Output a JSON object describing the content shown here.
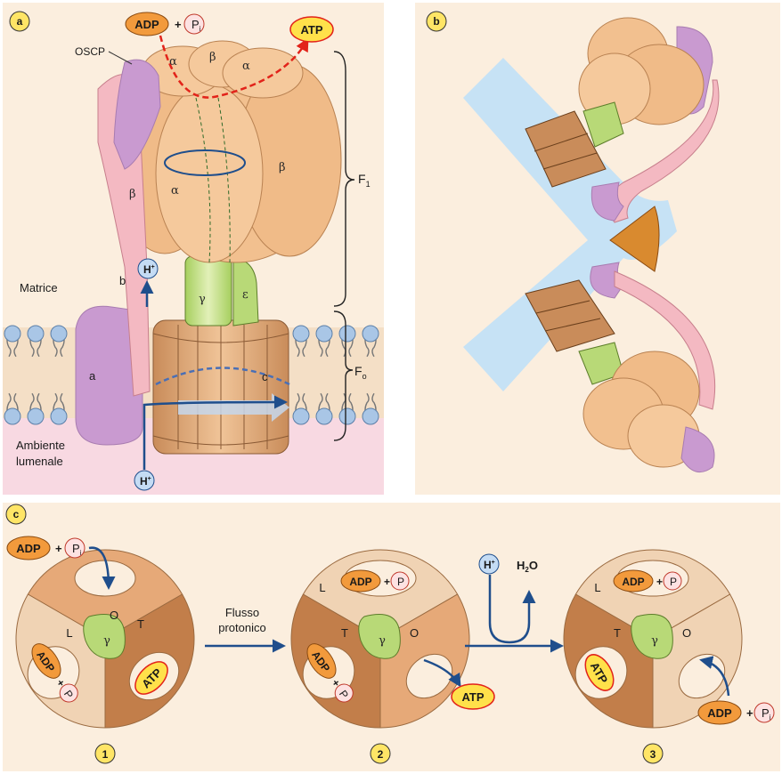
{
  "panels": {
    "a": "a",
    "b": "b",
    "c": "c"
  },
  "panel_a": {
    "adp": "ADP",
    "plus": "+",
    "pi": "P",
    "pi_sub": "i",
    "atp": "ATP",
    "oscp": "OSCP",
    "alpha": "α",
    "beta": "β",
    "gamma": "γ",
    "epsilon": "ε",
    "b": "b",
    "a": "a",
    "c": "c",
    "f1": "F",
    "f1_sub": "1",
    "fo": "F",
    "fo_sub": "o",
    "matrix": "Matrice",
    "lumen_line1": "Ambiente",
    "lumen_line2": "lumenale",
    "h": "H",
    "h_sup": "+"
  },
  "panel_c": {
    "flow_line1": "Flusso",
    "flow_line2": "protonico",
    "L": "L",
    "O": "O",
    "T": "T",
    "gamma": "γ",
    "adp": "ADP",
    "pi": "P",
    "pi_sub": "i",
    "plus": "+",
    "atp": "ATP",
    "h": "H",
    "h_sup": "+",
    "h2o": "H",
    "h2o_sub": "2",
    "h2o_end": "O",
    "steps": [
      "1",
      "2",
      "3"
    ]
  },
  "colors": {
    "panel_bg": "#fbeede",
    "f1_orange": "#f2c08f",
    "stalk_pink": "#f4b9c2",
    "oscp_purple": "#c99ad0",
    "gamma_green": "#b8d977",
    "membrane_blue": "#a9c6e6",
    "lumen_pink": "#f8d9e2",
    "arrow_blue": "#1f4e8c",
    "arrow_red": "#e2231a",
    "atp_yellow": "#ffe14a",
    "adp_orange": "#f29a3c",
    "step_yellow": "#ffe566"
  }
}
